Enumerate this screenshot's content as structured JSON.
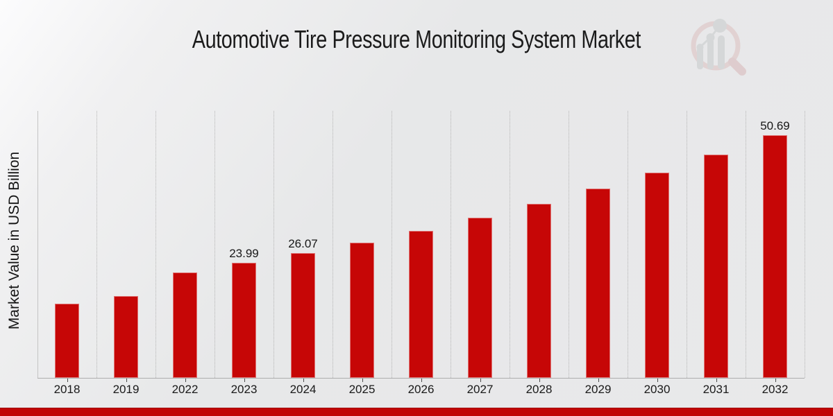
{
  "page": {
    "background_color": "#e8e9ea",
    "footer_bar_color": "#c10505"
  },
  "header": {
    "title": "Automotive Tire Pressure Monitoring System Market"
  },
  "logo": {
    "name": "market-research-magnifier-chart-watermark",
    "ring_color": "#dcbcbd",
    "handle_color": "#d6b2b3",
    "bars_color": "#c4c7c8"
  },
  "chart_data": {
    "type": "bar",
    "title": "Automotive Tire Pressure Monitoring System Market",
    "xlabel": "",
    "ylabel": "Market Value in USD Billion",
    "categories": [
      "2018",
      "2019",
      "2022",
      "2023",
      "2024",
      "2025",
      "2026",
      "2027",
      "2028",
      "2029",
      "2030",
      "2031",
      "2032"
    ],
    "values": [
      15.54,
      17.13,
      22.07,
      23.99,
      26.07,
      28.33,
      30.79,
      33.46,
      36.36,
      39.52,
      42.95,
      46.67,
      50.69
    ],
    "bar_labels": {
      "2023": "23.99",
      "2024": "26.07",
      "2032": "50.69"
    },
    "ylim": [
      0,
      55.8
    ],
    "bar_color": "#c60606",
    "grid": "vertical dotted lines between categories",
    "y_tick_labels": "none",
    "legend": "none"
  }
}
